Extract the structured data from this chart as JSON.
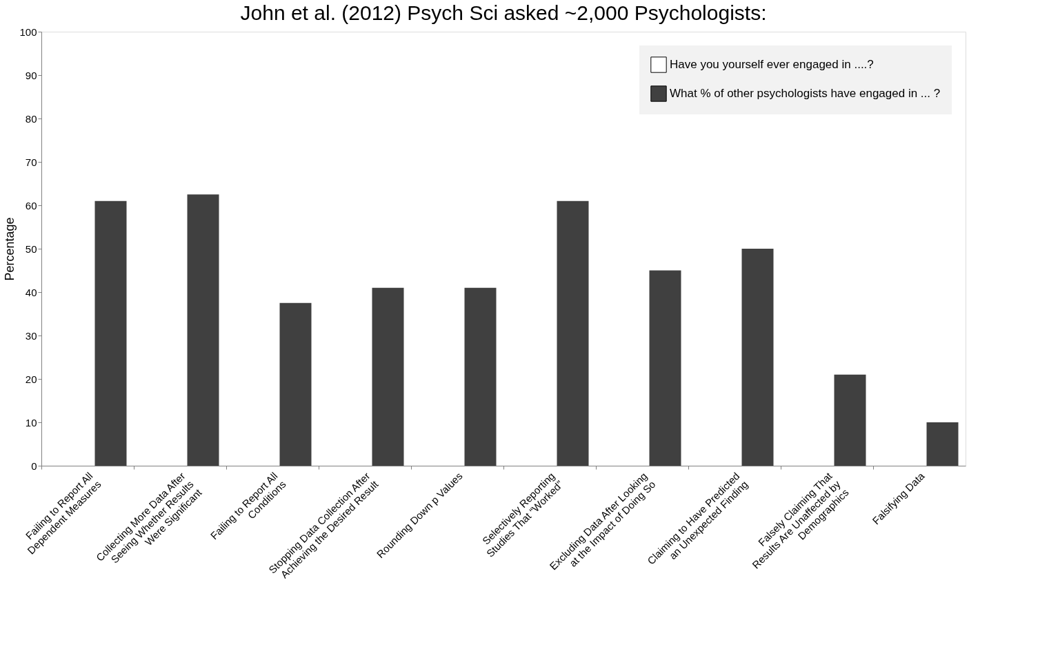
{
  "chart_data": {
    "type": "bar",
    "title": "John et al. (2012) Psych Sci asked ~2,000 Psychologists:",
    "ylabel": "Percentage",
    "categories": [
      "Failing to Report All\nDependent Measures",
      "Collecting More Data After\nSeeing Whether Results\nWere Significant",
      "Failing to Report All\nConditions",
      "Stopping Data Collection After\nAchieving the Desired Result",
      "Rounding Down p Values",
      "Selectively Reporting\nStudies That “Worked”",
      "Excluding Data After Looking\nat the Impact of Doing So",
      "Claiming to Have Predicted\nan Unexpected Finding",
      "Falsely Claiming That\nResults Are Unaffected by\nDemographics",
      "Falsifying Data"
    ],
    "series": [
      {
        "name": "Have you yourself ever engaged in ....?",
        "color": "#ffffff",
        "values": [
          null,
          null,
          null,
          null,
          null,
          null,
          null,
          null,
          null,
          null
        ]
      },
      {
        "name": "What % of other psychologists have engaged in ... ?",
        "color": "#404040",
        "values": [
          61,
          62.5,
          37.5,
          41,
          41,
          61,
          45,
          50,
          21,
          10
        ]
      }
    ],
    "ylim": [
      0,
      100
    ],
    "yticks": [
      0,
      10,
      20,
      30,
      40,
      50,
      60,
      70,
      80,
      90,
      100
    ],
    "grid": false,
    "legend": "top right"
  }
}
